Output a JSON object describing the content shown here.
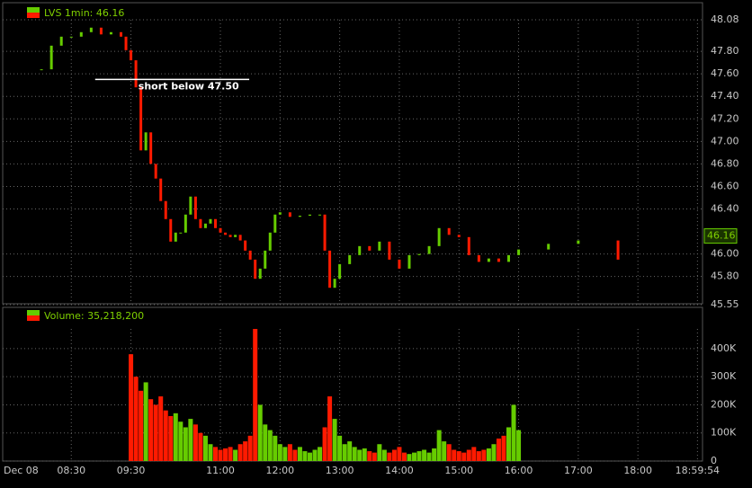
{
  "chart_data": [
    {
      "type": "candlestick",
      "title": "LVS 1min: 46.16",
      "date_label": "Dec 08",
      "up_color": "#66cc00",
      "down_color": "#ff1a00",
      "xlim": [
        "07:21",
        "19:05"
      ],
      "xticks": [
        "08:30",
        "09:30",
        "11:00",
        "12:00",
        "13:00",
        "14:00",
        "15:00",
        "16:00",
        "17:00",
        "18:00",
        "18:59:54"
      ],
      "ylim": [
        45.55,
        48.08
      ],
      "yticks": [
        45.55,
        {
          "value": 45.8,
          "label": "45.80"
        },
        {
          "value": 46,
          "label": "46.00"
        },
        {
          "value": 46.4,
          "label": "46.40"
        },
        {
          "value": 46.6,
          "label": "46.60"
        },
        {
          "value": 46.8,
          "label": "46.80"
        },
        {
          "value": 47,
          "label": "47.00"
        },
        {
          "value": 47.2,
          "label": "47.20"
        },
        {
          "value": 47.4,
          "label": "47.40"
        },
        {
          "value": 47.6,
          "label": "47.60"
        },
        {
          "value": 47.8,
          "label": "47.80"
        },
        48.08
      ],
      "grid": true,
      "last": 46.16,
      "annotation": {
        "text": "short below 47.50",
        "level": 47.55,
        "x": [
          "08:54",
          "11:29"
        ]
      },
      "x": [
        "08:00",
        "08:10",
        "08:20",
        "08:30",
        "08:40",
        "08:50",
        "09:00",
        "09:10",
        "09:20",
        "09:25",
        "09:30",
        "09:35",
        "09:40",
        "09:45",
        "09:50",
        "09:55",
        "10:00",
        "10:05",
        "10:10",
        "10:15",
        "10:20",
        "10:25",
        "10:30",
        "10:35",
        "10:40",
        "10:45",
        "10:50",
        "10:55",
        "11:00",
        "11:05",
        "11:10",
        "11:15",
        "11:20",
        "11:25",
        "11:30",
        "11:35",
        "11:40",
        "11:45",
        "11:50",
        "11:55",
        "12:00",
        "12:10",
        "12:20",
        "12:30",
        "12:40",
        "12:45",
        "12:50",
        "12:55",
        "13:00",
        "13:10",
        "13:20",
        "13:30",
        "13:40",
        "13:50",
        "14:00",
        "14:10",
        "14:20",
        "14:30",
        "14:40",
        "14:50",
        "15:00",
        "15:10",
        "15:20",
        "15:30",
        "15:40",
        "15:50",
        "16:00",
        "16:30",
        "17:00",
        "17:40"
      ],
      "values": [
        47.64,
        47.85,
        47.93,
        47.93,
        47.97,
        48.01,
        47.95,
        47.97,
        47.93,
        47.81,
        47.72,
        47.48,
        46.92,
        47.08,
        46.8,
        46.67,
        46.47,
        46.31,
        46.11,
        46.19,
        46.19,
        46.35,
        46.51,
        46.31,
        46.23,
        46.27,
        46.31,
        46.23,
        46.19,
        46.17,
        46.15,
        46.17,
        46.12,
        46.03,
        45.95,
        45.78,
        45.87,
        46.03,
        46.19,
        46.35,
        46.37,
        46.33,
        46.34,
        46.35,
        46.35,
        46.03,
        45.7,
        45.78,
        45.91,
        45.99,
        46.07,
        46.03,
        46.11,
        45.95,
        45.87,
        45.99,
        46,
        46.07,
        46.23,
        46.17,
        46.15,
        45.99,
        45.93,
        45.96,
        45.93,
        45.99,
        46.04,
        46.09,
        46.12,
        45.95
      ]
    },
    {
      "type": "bar",
      "title": "Volume: 35,218,200",
      "ylim": [
        0,
        470000
      ],
      "yticks": [
        0,
        {
          "value": 100000,
          "label": "100K"
        },
        {
          "value": 200000,
          "label": "200K"
        },
        {
          "value": 300000,
          "label": "300K"
        },
        {
          "value": 400000,
          "label": "400K"
        }
      ],
      "x": [
        "09:30",
        "09:35",
        "09:40",
        "09:45",
        "09:50",
        "09:55",
        "10:00",
        "10:05",
        "10:10",
        "10:15",
        "10:20",
        "10:25",
        "10:30",
        "10:35",
        "10:40",
        "10:45",
        "10:50",
        "10:55",
        "11:00",
        "11:05",
        "11:10",
        "11:15",
        "11:20",
        "11:25",
        "11:30",
        "11:35",
        "11:40",
        "11:45",
        "11:50",
        "11:55",
        "12:00",
        "12:05",
        "12:10",
        "12:15",
        "12:20",
        "12:25",
        "12:30",
        "12:35",
        "12:40",
        "12:45",
        "12:50",
        "12:55",
        "13:00",
        "13:05",
        "13:10",
        "13:15",
        "13:20",
        "13:25",
        "13:30",
        "13:35",
        "13:40",
        "13:45",
        "13:50",
        "13:55",
        "14:00",
        "14:05",
        "14:10",
        "14:15",
        "14:20",
        "14:25",
        "14:30",
        "14:35",
        "14:40",
        "14:45",
        "14:50",
        "14:55",
        "15:00",
        "15:05",
        "15:10",
        "15:15",
        "15:20",
        "15:25",
        "15:30",
        "15:35",
        "15:40",
        "15:45",
        "15:50",
        "15:55",
        "16:00"
      ],
      "values": [
        380000,
        300000,
        250000,
        280000,
        220000,
        200000,
        230000,
        180000,
        160000,
        170000,
        140000,
        120000,
        150000,
        130000,
        100000,
        90000,
        60000,
        50000,
        40000,
        45000,
        50000,
        40000,
        60000,
        70000,
        90000,
        470000,
        200000,
        130000,
        110000,
        90000,
        60000,
        50000,
        60000,
        40000,
        50000,
        35000,
        30000,
        40000,
        50000,
        120000,
        230000,
        150000,
        90000,
        60000,
        70000,
        50000,
        40000,
        45000,
        35000,
        30000,
        60000,
        40000,
        30000,
        40000,
        50000,
        30000,
        25000,
        30000,
        35000,
        40000,
        30000,
        45000,
        110000,
        70000,
        60000,
        40000,
        35000,
        30000,
        40000,
        50000,
        35000,
        40000,
        45000,
        60000,
        80000,
        90000,
        120000,
        200000,
        110000
      ]
    }
  ]
}
